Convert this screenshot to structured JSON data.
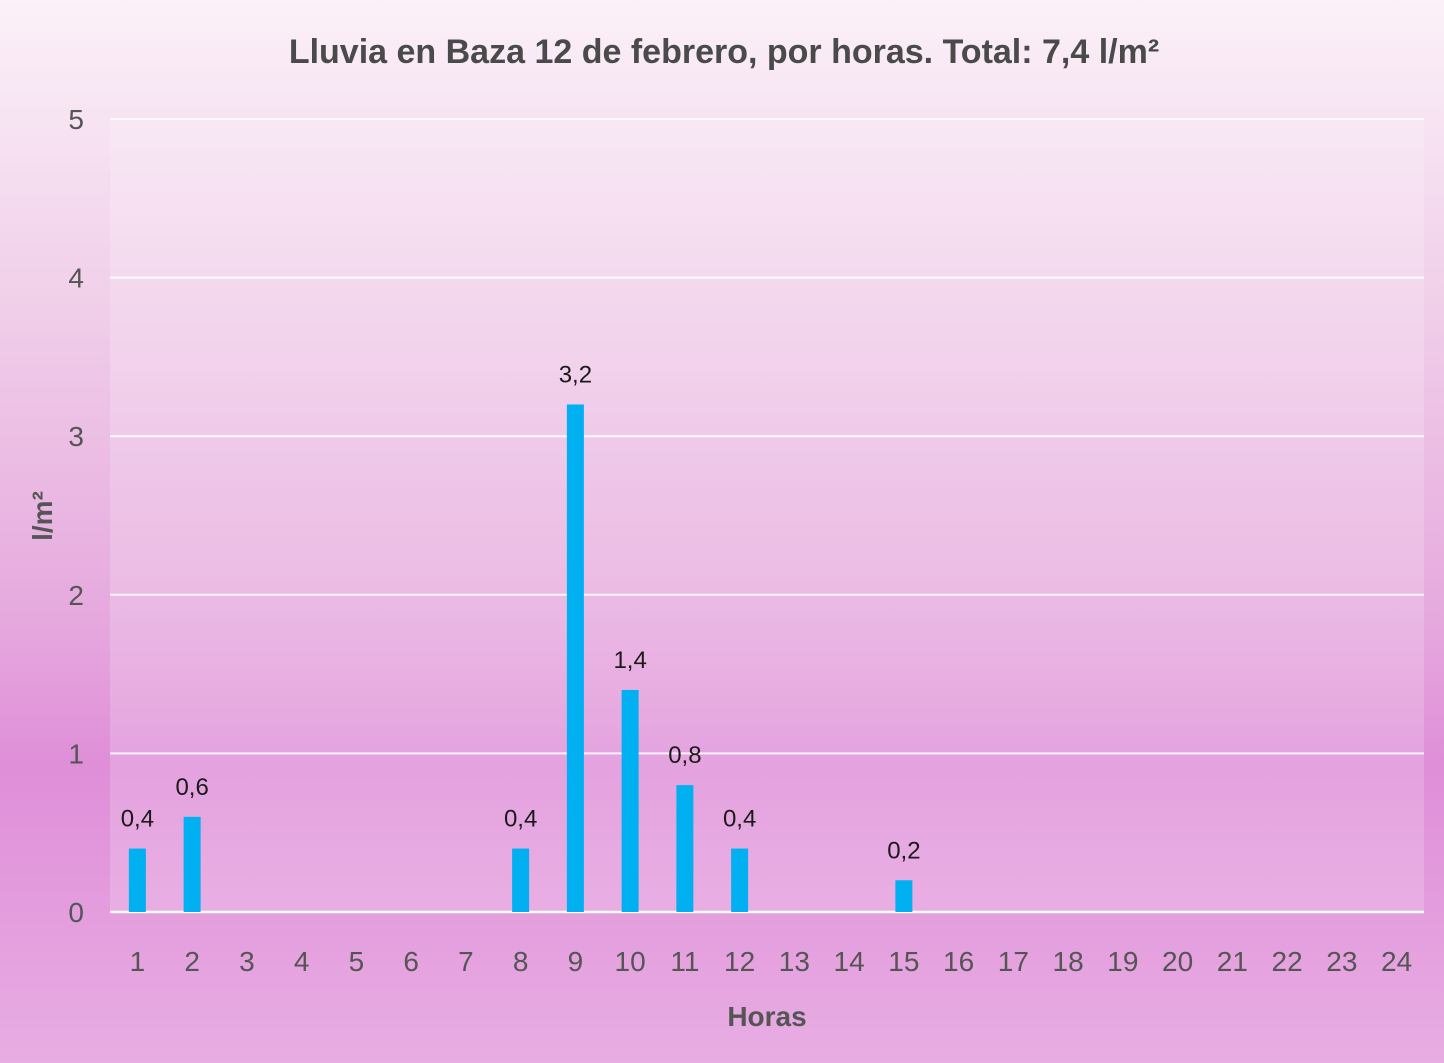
{
  "chart_data": {
    "type": "bar",
    "title": "Lluvia en Baza 12 de febrero, por horas. Total: 7,4 l/m²",
    "xlabel": "Horas",
    "ylabel": "l/m²",
    "categories": [
      "1",
      "2",
      "3",
      "4",
      "5",
      "6",
      "7",
      "8",
      "9",
      "10",
      "11",
      "12",
      "13",
      "14",
      "15",
      "16",
      "17",
      "18",
      "19",
      "20",
      "21",
      "22",
      "23",
      "24"
    ],
    "values": [
      0.4,
      0.6,
      0,
      0,
      0,
      0,
      0,
      0.4,
      3.2,
      1.4,
      0.8,
      0.4,
      0,
      0,
      0.2,
      0,
      0,
      0,
      0,
      0,
      0,
      0,
      0,
      0
    ],
    "data_labels": [
      "0,4",
      "0,6",
      "",
      "",
      "",
      "",
      "",
      "0,4",
      "3,2",
      "1,4",
      "0,8",
      "0,4",
      "",
      "",
      "0,2",
      "",
      "",
      "",
      "",
      "",
      "",
      "",
      "",
      ""
    ],
    "ylim": [
      0,
      5
    ],
    "yticks": [
      0,
      1,
      2,
      3,
      4,
      5
    ],
    "ytick_labels": [
      "0",
      "1",
      "2",
      "3",
      "4",
      "5"
    ],
    "grid": true,
    "legend": "none",
    "bar_color": "#00b0f0"
  }
}
